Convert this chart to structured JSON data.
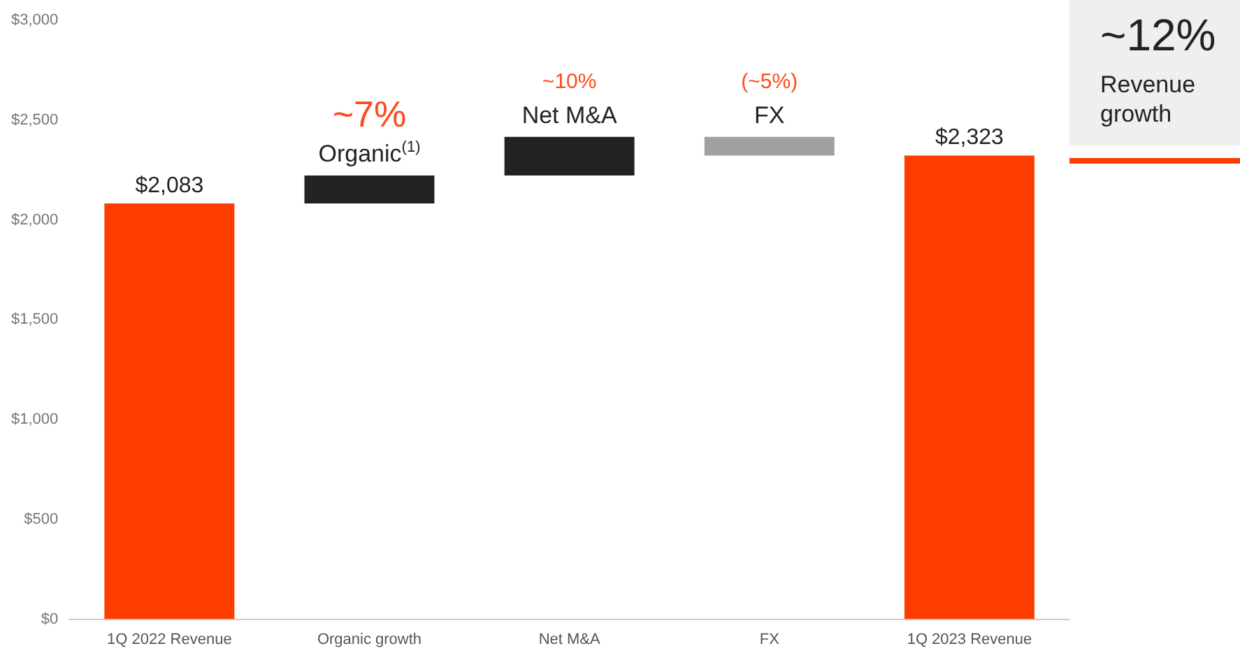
{
  "chart_data": {
    "type": "bar",
    "categories": [
      "1Q 2022 Revenue",
      "Organic growth",
      "Net M&A",
      "FX",
      "1Q 2023 Revenue"
    ],
    "values": [
      2083,
      140,
      194,
      -94,
      2323
    ],
    "base": [
      null,
      2083,
      2223,
      2417,
      null
    ],
    "colors": [
      "#ff3d00",
      "#222222",
      "#222222",
      "#a0a0a0",
      "#ff3d00"
    ],
    "value_labels": [
      "$2,083",
      null,
      null,
      null,
      "$2,323"
    ],
    "ylim": [
      0,
      3000
    ],
    "yticks": [
      {
        "value": 0,
        "label": "$0"
      },
      {
        "value": 500,
        "label": "$500"
      },
      {
        "value": 1000,
        "label": "$1,000"
      },
      {
        "value": 1500,
        "label": "$1,500"
      },
      {
        "value": 2000,
        "label": "$2,000"
      },
      {
        "value": 2500,
        "label": "$2,500"
      },
      {
        "value": 3000,
        "label": "$3,000"
      }
    ],
    "grid": false,
    "annotations": [
      {
        "text": "~7%",
        "x": "Organic growth",
        "y": 2223
      },
      {
        "text": "Organic$^{(1)}$",
        "x": "Organic growth",
        "y": 2223
      },
      {
        "text": "~10%",
        "x": "Net M&A",
        "y": 2417
      },
      {
        "text": "Net M&A",
        "x": "Net M&A",
        "y": 2417
      },
      {
        "text": "(~5%)",
        "x": "FX",
        "y": 2417
      },
      {
        "text": "FX",
        "x": "FX",
        "y": 2417
      },
      "~12%",
      "Revenue growth"
    ]
  }
}
